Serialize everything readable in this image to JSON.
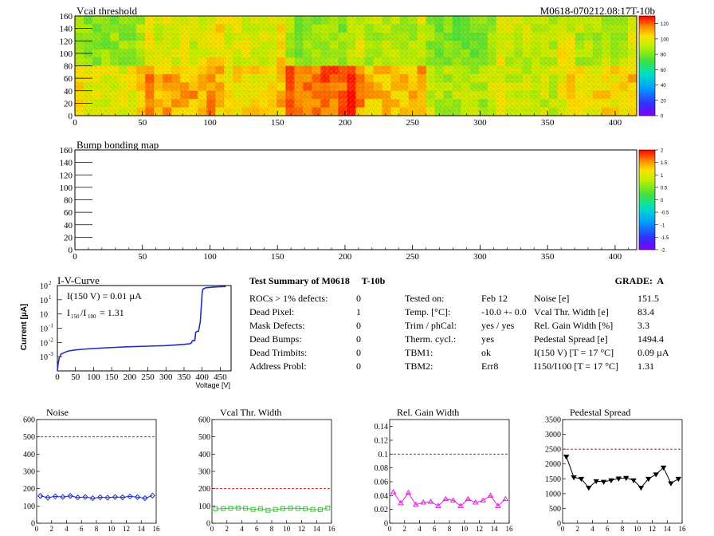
{
  "header": {
    "vcal_title": "Vcal threshold",
    "module_id": "M0618-070212.08:17T-10b",
    "bump_title": "Bump bonding map"
  },
  "colors": {
    "frame": "#000000",
    "iv_line": "#1f2fbf",
    "noise": "#2030c0",
    "vcal": "#40c040",
    "gain": "#e020e0",
    "pedestal": "#000000",
    "limit": "#c00000"
  },
  "heatmap_axes": {
    "x_ticks": [
      "0",
      "50",
      "100",
      "150",
      "200",
      "250",
      "300",
      "350",
      "400"
    ],
    "y_ticks": [
      "0",
      "20",
      "40",
      "60",
      "80",
      "100",
      "120",
      "140",
      "160"
    ],
    "vcal_scale": [
      "0",
      "20",
      "40",
      "60",
      "80",
      "100",
      "120"
    ],
    "bump_scale": [
      "-2",
      "-1.5",
      "-1",
      "-0.5",
      "0",
      "0.5",
      "1",
      "1.5",
      "2"
    ]
  },
  "iv": {
    "title": "I-V-Curve",
    "i150": "I(150 V) = 0.01 µA",
    "ratio_label": "I",
    "ratio_sub1": "150",
    "ratio_sub2": "100",
    "ratio_value": "= 1.31",
    "ylabel": "Current [µA]",
    "xlabel": "Voltage [V]",
    "x_ticks": [
      "0",
      "50",
      "100",
      "150",
      "200",
      "250",
      "300",
      "350",
      "400",
      "450"
    ],
    "y_ticks": [
      "10",
      "10",
      "10",
      "10",
      "10",
      "10"
    ],
    "y_exps": [
      "2",
      "1",
      "",
      "-1",
      "-2",
      "-3"
    ]
  },
  "summary": {
    "title": "Test Summary of M0618     T-10b",
    "grade": "GRADE:  A",
    "left": [
      {
        "label": "ROCs > 1% defects:",
        "value": "0"
      },
      {
        "label": "Dead Pixel:",
        "value": "1"
      },
      {
        "label": "Mask Defects:",
        "value": "0"
      },
      {
        "label": "Dead Bumps:",
        "value": "0"
      },
      {
        "label": "Dead Trimbits:",
        "value": "0"
      },
      {
        "label": "Address Probl:",
        "value": "0"
      }
    ],
    "middle": [
      {
        "label": "Tested on:",
        "value": "Feb 12"
      },
      {
        "label": "Temp. [°C]:",
        "value": "-10.0 +- 0.0"
      },
      {
        "label": "Trim / phCal:",
        "value": "yes / yes"
      },
      {
        "label": "Therm. cycl.:",
        "value": "yes"
      },
      {
        "label": "TBM1:",
        "value": "ok"
      },
      {
        "label": "TBM2:",
        "value": "Err8"
      }
    ],
    "right": [
      {
        "label": "Noise [e]",
        "value": "151.5"
      },
      {
        "label": "Vcal Thr. Width [e]",
        "value": "83.4"
      },
      {
        "label": "Rel. Gain Width [%]",
        "value": "3.3"
      },
      {
        "label": "Pedestal Spread [e]",
        "value": "1494.4"
      },
      {
        "label": "I(150 V)  [T = 17 °C]",
        "value": "0.09 µA"
      },
      {
        "label": "I150/I100  [T = 17 °C]",
        "value": "1.31"
      }
    ]
  },
  "chart_data": [
    {
      "type": "heatmap",
      "title": "Vcal threshold",
      "xlim": [
        0,
        416
      ],
      "ylim": [
        0,
        160
      ],
      "z_range": [
        0,
        130
      ],
      "rocs_top": [
        82,
        95,
        97,
        82,
        89,
        78,
        92,
        89
      ],
      "rocs_bottom": [
        98,
        111,
        102,
        120,
        108,
        88,
        92,
        102
      ]
    },
    {
      "type": "heatmap",
      "title": "Bump bonding map",
      "xlim": [
        0,
        416
      ],
      "ylim": [
        0,
        160
      ],
      "z_range": [
        -2,
        2
      ]
    },
    {
      "type": "line",
      "title": "I-V-Curve",
      "xlabel": "Voltage [V]",
      "ylabel": "Current [µA]",
      "xlim": [
        0,
        480
      ],
      "ylim": [
        0.0001,
        100
      ],
      "yscale": "log",
      "x": [
        0,
        2,
        5,
        10,
        20,
        30,
        50,
        80,
        120,
        160,
        200,
        250,
        300,
        340,
        365,
        370,
        372,
        375,
        378,
        380,
        382,
        385,
        390,
        395,
        398,
        400,
        402,
        410,
        430,
        450,
        465
      ],
      "y": [
        0.0001,
        0.0003,
        0.0008,
        0.0015,
        0.002,
        0.0025,
        0.003,
        0.0035,
        0.004,
        0.0045,
        0.005,
        0.0055,
        0.006,
        0.007,
        0.008,
        0.009,
        0.012,
        0.014,
        0.013,
        0.014,
        0.05,
        0.06,
        0.06,
        0.3,
        5,
        30,
        55,
        70,
        78,
        82,
        85
      ]
    },
    {
      "type": "line",
      "title": "Noise",
      "xlim": [
        0,
        16
      ],
      "ylim": [
        0,
        600
      ],
      "limit": 500,
      "x": [
        0.5,
        1.5,
        2.5,
        3.5,
        4.5,
        5.5,
        6.5,
        7.5,
        8.5,
        9.5,
        10.5,
        11.5,
        12.5,
        13.5,
        14.5,
        15.5
      ],
      "y": [
        158,
        148,
        155,
        152,
        158,
        149,
        152,
        145,
        150,
        148,
        152,
        150,
        155,
        151,
        145,
        160
      ],
      "y_ticks": [
        "0",
        "100",
        "200",
        "300",
        "400",
        "500",
        "600"
      ]
    },
    {
      "type": "line",
      "title": "Vcal Thr. Width",
      "xlim": [
        0,
        16
      ],
      "ylim": [
        0,
        600
      ],
      "limit": 200,
      "x": [
        0.5,
        1.5,
        2.5,
        3.5,
        4.5,
        5.5,
        6.5,
        7.5,
        8.5,
        9.5,
        10.5,
        11.5,
        12.5,
        13.5,
        14.5,
        15.5
      ],
      "y": [
        83,
        85,
        87,
        88,
        86,
        80,
        84,
        75,
        80,
        85,
        87,
        86,
        84,
        80,
        78,
        88
      ],
      "y_ticks": [
        "0",
        "100",
        "200",
        "300",
        "400",
        "500",
        "600"
      ]
    },
    {
      "type": "line",
      "title": "Rel. Gain Width",
      "xlim": [
        0,
        16
      ],
      "ylim": [
        0,
        0.15
      ],
      "limit": 0.1,
      "x": [
        0.5,
        1.5,
        2.5,
        3.5,
        4.5,
        5.5,
        6.5,
        7.5,
        8.5,
        9.5,
        10.5,
        11.5,
        12.5,
        13.5,
        14.5,
        15.5
      ],
      "y": [
        0.045,
        0.029,
        0.044,
        0.027,
        0.03,
        0.031,
        0.025,
        0.035,
        0.033,
        0.025,
        0.035,
        0.03,
        0.033,
        0.04,
        0.025,
        0.035
      ],
      "y_ticks": [
        "0",
        "0.02",
        "0.04",
        "0.06",
        "0.08",
        "0.1",
        "0.12",
        "0.14"
      ]
    },
    {
      "type": "line",
      "title": "Pedestal Spread",
      "xlim": [
        0,
        16
      ],
      "ylim": [
        0,
        3500
      ],
      "limit": 2500,
      "x": [
        0.5,
        1.5,
        2.5,
        3.5,
        4.5,
        5.5,
        6.5,
        7.5,
        8.5,
        9.5,
        10.5,
        11.5,
        12.5,
        13.5,
        14.5,
        15.5
      ],
      "y": [
        2250,
        1550,
        1500,
        1200,
        1420,
        1400,
        1450,
        1510,
        1530,
        1450,
        1200,
        1500,
        1650,
        1880,
        1350,
        1500
      ],
      "y_ticks": [
        "0",
        "500",
        "1000",
        "1500",
        "2000",
        "2500",
        "3000",
        "3500"
      ]
    }
  ],
  "small_x_ticks": [
    "0",
    "2",
    "4",
    "6",
    "8",
    "10",
    "12",
    "14",
    "16"
  ]
}
